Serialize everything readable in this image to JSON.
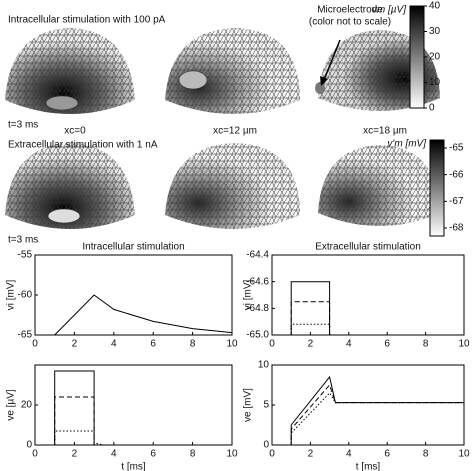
{
  "figure": {
    "row1_label": "Intracellular stimulation with 100 pA",
    "row2_label": "Extracellular stimulation with 1 nA",
    "time_labels": [
      "t=3 ms",
      "t=3 ms"
    ],
    "positions": [
      "xc=0",
      "xc=12 µm",
      "xc=18 µm"
    ],
    "annotation": [
      "Microelectrode",
      "(color not to scale)"
    ],
    "colorbars": [
      {
        "label": "vm [µV]",
        "lim": [
          0,
          40
        ],
        "ticks": [
          0,
          10,
          20,
          30,
          40
        ]
      },
      {
        "label": "v'm [mV]",
        "lim": [
          -68.3,
          -64.7
        ],
        "ticks": [
          -65,
          -66,
          -67,
          -68
        ]
      }
    ]
  },
  "charts": [
    {
      "type": "line",
      "title": "Intracellular stimulation",
      "ylabel": "vi [mV]",
      "xlim": [
        0,
        10
      ],
      "xticks": [
        0,
        2,
        4,
        6,
        8,
        10
      ],
      "ylim": [
        -65,
        -55
      ],
      "yticks": [
        -65,
        -60,
        -55
      ],
      "x": [
        0,
        1,
        3,
        4,
        6,
        8,
        10
      ],
      "series": [
        {
          "color": "#000",
          "dash": "solid",
          "values": [
            -65,
            -65,
            -60,
            -61.8,
            -63.3,
            -64.2,
            -64.7
          ]
        }
      ]
    },
    {
      "type": "line",
      "title": "Extracellular stimulation",
      "ylabel": "vi [mV]",
      "xlim": [
        0,
        10
      ],
      "xticks": [
        0,
        2,
        4,
        6,
        8,
        10
      ],
      "ylim": [
        -65,
        -64.4
      ],
      "yticks": [
        {
          "value": -65,
          "label": "-65.0"
        },
        -64.8,
        -64.6,
        -64.4
      ],
      "x": [
        0,
        1,
        1,
        3,
        3,
        10
      ],
      "series": [
        {
          "color": "#000",
          "dash": "solid",
          "values": [
            -65,
            -65,
            -64.6,
            -64.6,
            -65,
            -65
          ]
        },
        {
          "color": "#000",
          "dash": "dash",
          "values": [
            -65,
            -65,
            -64.75,
            -64.75,
            -65,
            -65
          ]
        },
        {
          "color": "#000",
          "dash": "dot",
          "values": [
            -65,
            -65,
            -64.92,
            -64.92,
            -65,
            -65
          ]
        }
      ]
    },
    {
      "type": "line",
      "xlabel": "t [ms]",
      "ylabel": "ve [µV]",
      "xlim": [
        0,
        10
      ],
      "xticks": [
        0,
        2,
        4,
        6,
        8,
        10
      ],
      "ylim": [
        0,
        40
      ],
      "yticks": [
        0,
        20
      ],
      "x": [
        0,
        1,
        1,
        3,
        3,
        3.5,
        10
      ],
      "series": [
        {
          "color": "#000",
          "dash": "solid",
          "values": [
            0,
            0,
            37,
            37,
            0,
            0,
            0
          ]
        },
        {
          "color": "#000",
          "dash": "dash",
          "values": [
            0,
            0,
            24,
            24,
            0,
            0,
            0
          ]
        },
        {
          "color": "#000",
          "dash": "dot",
          "values": [
            0,
            0,
            7,
            7,
            1,
            0,
            0
          ]
        }
      ]
    },
    {
      "type": "line",
      "xlabel": "t [ms]",
      "ylabel": "ve [mV]",
      "xlim": [
        0,
        10
      ],
      "xticks": [
        0,
        2,
        4,
        6,
        8,
        10
      ],
      "ylim": [
        0,
        10
      ],
      "yticks": [
        0,
        5,
        10
      ],
      "x": [
        0,
        1,
        1,
        3,
        3.3,
        10
      ],
      "series": [
        {
          "color": "#000",
          "dash": "solid",
          "values": [
            0,
            0,
            2.5,
            8.5,
            5.3,
            5.3
          ]
        },
        {
          "color": "#000",
          "dash": "dash",
          "values": [
            0,
            0,
            2,
            7.5,
            5.3,
            5.3
          ]
        },
        {
          "color": "#000",
          "dash": "dot",
          "values": [
            0,
            0,
            1.5,
            6.5,
            5.3,
            5.3
          ]
        }
      ]
    }
  ]
}
